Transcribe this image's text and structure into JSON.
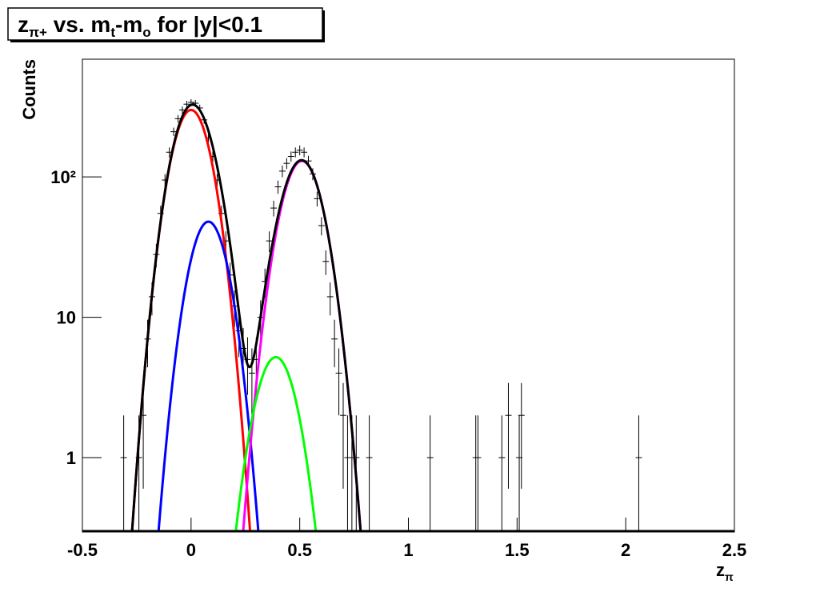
{
  "chart_data": {
    "type": "histogram-fit",
    "title": [
      "z",
      "π+",
      " vs. m",
      "t",
      "-m",
      "o",
      " for |y|<0.1"
    ],
    "xlabel": [
      "z",
      "π"
    ],
    "ylabel": "Counts",
    "log_y": true,
    "xlim": [
      -0.5,
      2.5
    ],
    "ylim": [
      0.295,
      690
    ],
    "xticks": [
      -0.5,
      0,
      0.5,
      1,
      1.5,
      2,
      2.5
    ],
    "yticks": [
      1,
      10,
      {
        "value": 100,
        "label": "10²"
      }
    ],
    "marker_color": "#000000",
    "x": [
      -0.31,
      -0.24,
      -0.22,
      -0.2,
      -0.18,
      -0.16,
      -0.14,
      -0.12,
      -0.1,
      -0.08,
      -0.06,
      -0.04,
      -0.02,
      0,
      0.02,
      0.04,
      0.06,
      0.08,
      0.1,
      0.12,
      0.14,
      0.16,
      0.18,
      0.2,
      0.22,
      0.24,
      0.26,
      0.28,
      0.3,
      0.32,
      0.34,
      0.36,
      0.38,
      0.4,
      0.42,
      0.44,
      0.46,
      0.48,
      0.5,
      0.52,
      0.54,
      0.56,
      0.58,
      0.6,
      0.62,
      0.64,
      0.66,
      0.68,
      0.7,
      0.72,
      0.74,
      0.76,
      0.82,
      1.1,
      1.31,
      1.32,
      1.43,
      1.46,
      1.51,
      1.52,
      2.06
    ],
    "values": [
      1,
      1,
      2,
      7,
      14,
      28,
      55,
      95,
      150,
      210,
      260,
      300,
      330,
      340,
      335,
      310,
      255,
      190,
      140,
      95,
      55,
      35,
      20,
      12,
      8,
      6,
      5,
      4,
      5,
      10,
      18,
      35,
      60,
      85,
      110,
      125,
      140,
      150,
      155,
      150,
      130,
      105,
      70,
      45,
      25,
      14,
      7,
      4,
      2,
      1,
      1,
      1,
      1,
      1,
      1,
      1,
      1,
      2,
      1,
      2,
      1
    ],
    "errors": [
      1,
      1,
      1.4,
      2.6,
      3.7,
      5.3,
      7.4,
      9.7,
      12.2,
      14.5,
      16.1,
      17.3,
      18.2,
      18.4,
      18.3,
      17.6,
      16.0,
      13.8,
      11.8,
      9.7,
      7.4,
      5.9,
      4.5,
      3.5,
      2.8,
      2.4,
      2.2,
      2,
      2.2,
      3.2,
      4.2,
      5.9,
      7.7,
      9.2,
      10.5,
      11.2,
      11.8,
      12.2,
      12.4,
      12.2,
      11.4,
      10.2,
      8.4,
      6.7,
      5,
      3.7,
      2.6,
      2,
      1.4,
      1,
      1,
      1,
      1,
      1,
      1,
      1,
      1,
      1.4,
      1,
      1.4,
      1
    ],
    "fits": [
      {
        "color": "#ff0000",
        "peak": 300,
        "mean": 0,
        "sigma": 0.073
      },
      {
        "color": "#0000ff",
        "peak": 48,
        "mean": 0.08,
        "sigma": 0.072
      },
      {
        "color": "#ff00ff",
        "peak": 130,
        "mean": 0.51,
        "sigma": 0.0775
      },
      {
        "color": "#00ff00",
        "peak": 5.2,
        "mean": 0.39,
        "sigma": 0.077
      }
    ],
    "total_color": "#000000"
  }
}
